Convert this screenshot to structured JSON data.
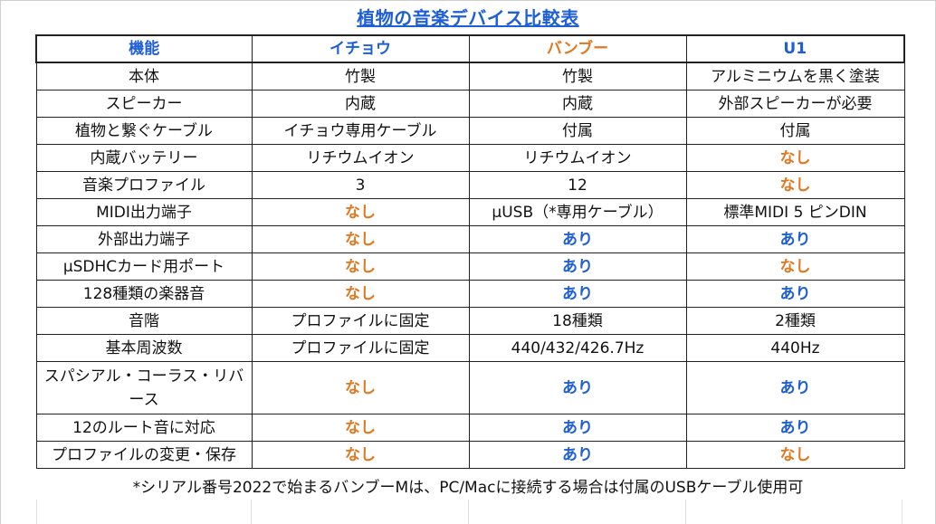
{
  "title": "植物の音楽デバイス比較表",
  "headers": [
    {
      "label": "機能",
      "color": "#1f5fd6"
    },
    {
      "label": "イチョウ",
      "color": "#1f5fd6"
    },
    {
      "label": "バンブー",
      "color": "#e07820"
    },
    {
      "label": "U1",
      "color": "#1f5fd6"
    }
  ],
  "rows": [
    {
      "feature": "本体",
      "cells": [
        {
          "text": "竹製",
          "kind": "plain"
        },
        {
          "text": "竹製",
          "kind": "plain"
        },
        {
          "text": "アルミニウムを黒く塗装",
          "kind": "plain"
        }
      ]
    },
    {
      "feature": "スピーカー",
      "cells": [
        {
          "text": "内蔵",
          "kind": "plain"
        },
        {
          "text": "内蔵",
          "kind": "plain"
        },
        {
          "text": "外部スピーカーが必要",
          "kind": "plain"
        }
      ]
    },
    {
      "feature": "植物と繋ぐケーブル",
      "cells": [
        {
          "text": "イチョウ専用ケーブル",
          "kind": "plain"
        },
        {
          "text": "付属",
          "kind": "plain"
        },
        {
          "text": "付属",
          "kind": "plain"
        }
      ]
    },
    {
      "feature": "内蔵バッテリー",
      "cells": [
        {
          "text": "リチウムイオン",
          "kind": "plain"
        },
        {
          "text": "リチウムイオン",
          "kind": "plain"
        },
        {
          "text": "なし",
          "kind": "none"
        }
      ]
    },
    {
      "feature": "音楽プロファイル",
      "cells": [
        {
          "text": "3",
          "kind": "plain"
        },
        {
          "text": "12",
          "kind": "plain"
        },
        {
          "text": "なし",
          "kind": "none"
        }
      ]
    },
    {
      "feature": "MIDI出力端子",
      "cells": [
        {
          "text": "なし",
          "kind": "none"
        },
        {
          "text": "μUSB（*専用ケーブル）",
          "kind": "plain"
        },
        {
          "text": "標準MIDI 5 ピンDIN",
          "kind": "plain"
        }
      ]
    },
    {
      "feature": "外部出力端子",
      "cells": [
        {
          "text": "なし",
          "kind": "none"
        },
        {
          "text": "あり",
          "kind": "yes"
        },
        {
          "text": "あり",
          "kind": "yes"
        }
      ]
    },
    {
      "feature": "μSDHCカード用ポート",
      "cells": [
        {
          "text": "なし",
          "kind": "none"
        },
        {
          "text": "あり",
          "kind": "yes"
        },
        {
          "text": "なし",
          "kind": "none"
        }
      ]
    },
    {
      "feature": "128種類の楽器音",
      "cells": [
        {
          "text": "なし",
          "kind": "none"
        },
        {
          "text": "あり",
          "kind": "yes"
        },
        {
          "text": "あり",
          "kind": "yes"
        }
      ]
    },
    {
      "feature": "音階",
      "cells": [
        {
          "text": "プロファイルに固定",
          "kind": "plain"
        },
        {
          "text": "18種類",
          "kind": "plain"
        },
        {
          "text": "2種類",
          "kind": "plain"
        }
      ]
    },
    {
      "feature": "基本周波数",
      "cells": [
        {
          "text": "プロファイルに固定",
          "kind": "plain"
        },
        {
          "text": "440/432/426.7Hz",
          "kind": "plain"
        },
        {
          "text": "440Hz",
          "kind": "plain"
        }
      ]
    },
    {
      "feature": "スパシアル・コーラス・リバース",
      "tall": true,
      "cells": [
        {
          "text": "なし",
          "kind": "none"
        },
        {
          "text": "あり",
          "kind": "yes"
        },
        {
          "text": "あり",
          "kind": "yes"
        }
      ]
    },
    {
      "feature": "12のルート音に対応",
      "cells": [
        {
          "text": "なし",
          "kind": "none"
        },
        {
          "text": "あり",
          "kind": "yes"
        },
        {
          "text": "あり",
          "kind": "yes"
        }
      ]
    },
    {
      "feature": "プロファイルの変更・保存",
      "cells": [
        {
          "text": "なし",
          "kind": "none"
        },
        {
          "text": "あり",
          "kind": "yes"
        },
        {
          "text": "なし",
          "kind": "none"
        }
      ]
    }
  ],
  "footnote": "*シリアル番号2022で始まるバンブーMは、PC/Macに接続する場合は付属のUSBケーブル使用可",
  "colors": {
    "none": "#e07820",
    "yes": "#1f5fd6",
    "title": "#1f5fd6"
  }
}
